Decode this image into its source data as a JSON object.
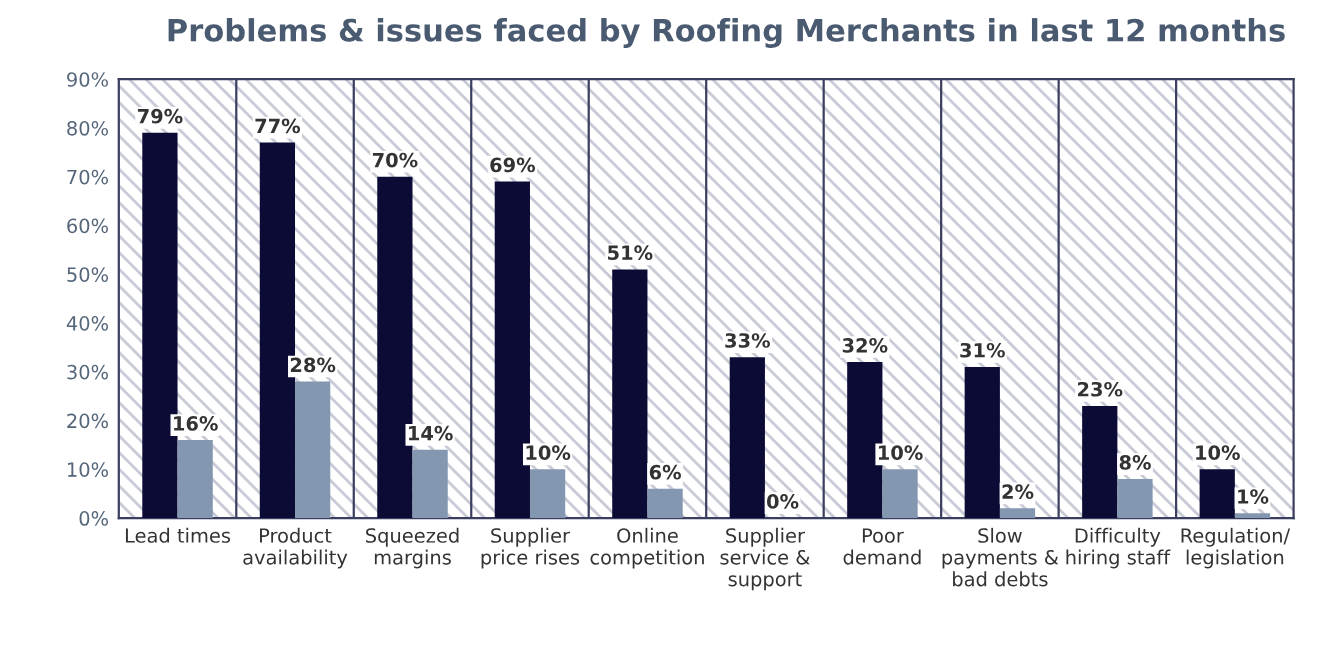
{
  "chart_data": {
    "type": "bar",
    "title": "Problems & issues faced by Roofing Merchants in last 12 months",
    "categories": [
      "Lead times",
      "Product\navailability",
      "Squeezed\nmargins",
      "Supplier\nprice rises",
      "Online\ncompetition",
      "Supplier\nservice &\nsupport",
      "Poor\ndemand",
      "Slow\npayments &\nbad debts",
      "Difficulty\nhiring staff",
      "Regulation/\nlegislation"
    ],
    "series": [
      {
        "color": "#0b0b35",
        "values": [
          79,
          77,
          70,
          69,
          51,
          33,
          32,
          31,
          23,
          10
        ],
        "value_labels": [
          "79%",
          "77%",
          "70%",
          "69%",
          "51%",
          "33%",
          "32%",
          "31%",
          "23%",
          "10%"
        ]
      },
      {
        "color": "#8497b0",
        "values": [
          16,
          28,
          14,
          10,
          6,
          0,
          10,
          2,
          8,
          1
        ],
        "value_labels": [
          "16%",
          "28%",
          "14%",
          "10%",
          "6%",
          "0%",
          "10%",
          "2%",
          "8%",
          "1%"
        ]
      }
    ],
    "ylim": [
      0,
      90
    ],
    "yticks": [
      {
        "value": 0,
        "label": "0%"
      },
      {
        "value": 10,
        "label": "10%"
      },
      {
        "value": 20,
        "label": "20%"
      },
      {
        "value": 30,
        "label": "30%"
      },
      {
        "value": 40,
        "label": "40%"
      },
      {
        "value": 50,
        "label": "50%"
      },
      {
        "value": 60,
        "label": "60%"
      },
      {
        "value": 70,
        "label": "70%"
      },
      {
        "value": 80,
        "label": "80%"
      },
      {
        "value": 90,
        "label": "90%"
      }
    ],
    "grid": false
  }
}
